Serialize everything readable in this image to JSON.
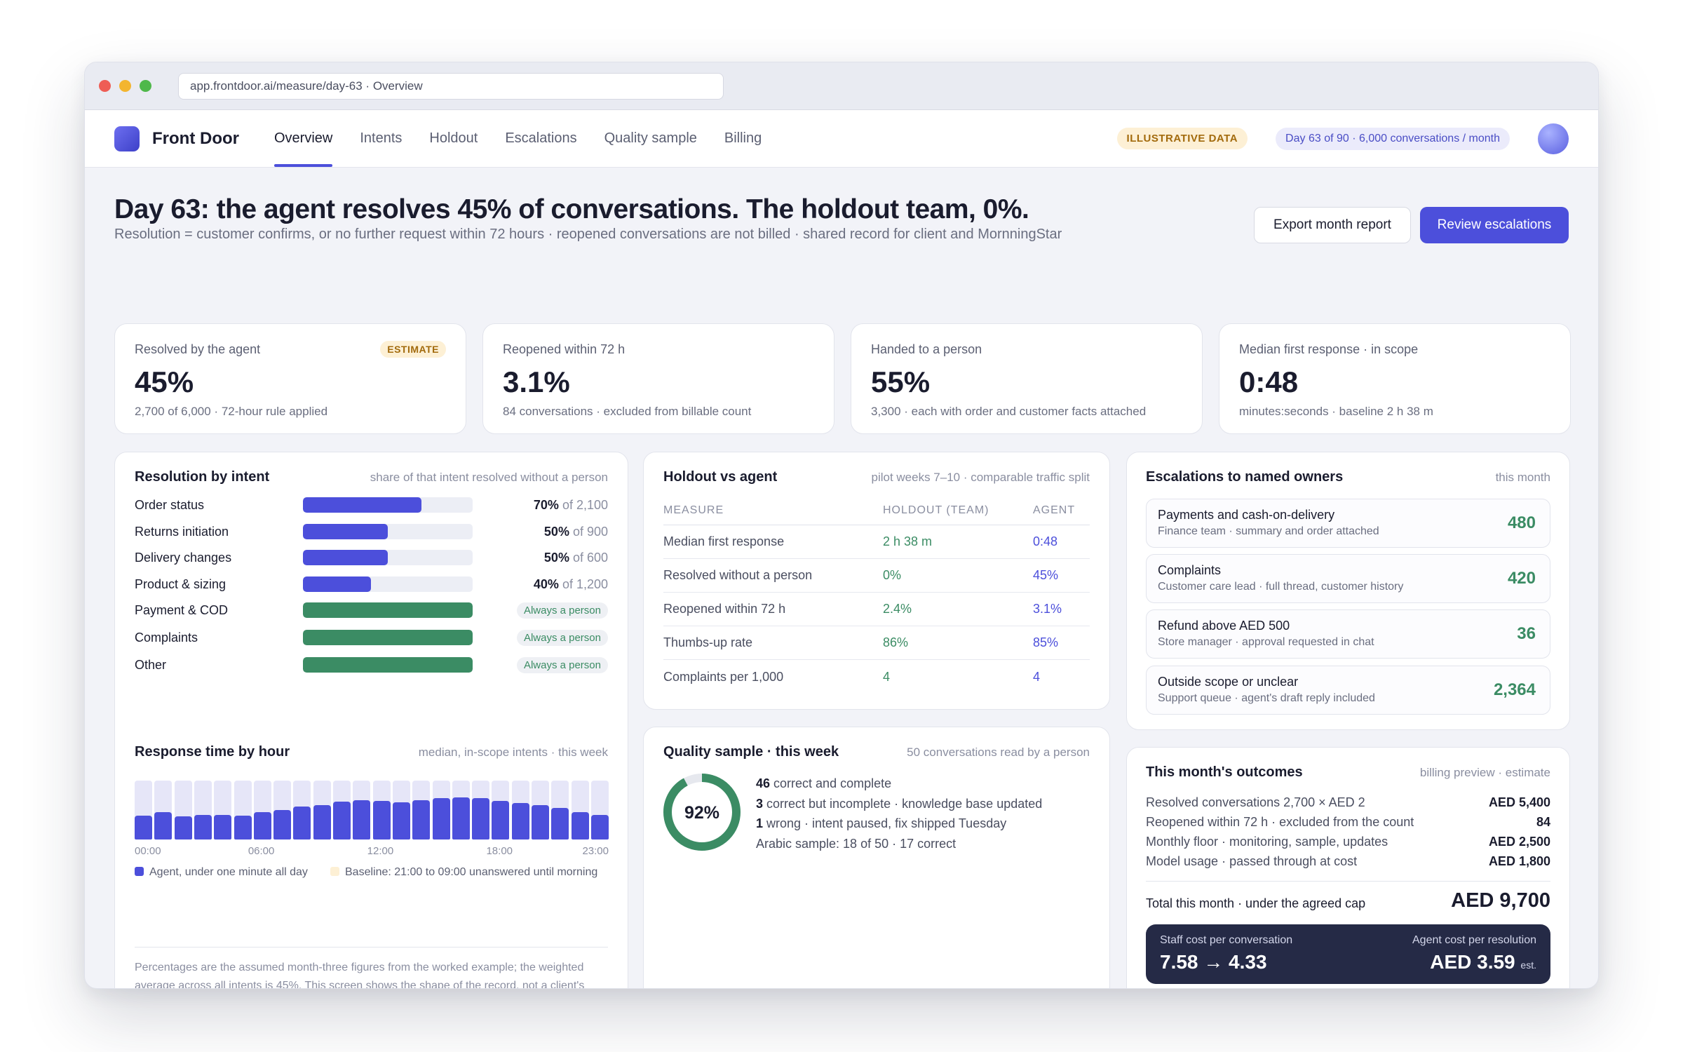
{
  "browser": {
    "url": "app.frontdoor.ai/measure/day-63 · Overview"
  },
  "nav": {
    "brand": "Front Door",
    "tabs": [
      "Overview",
      "Intents",
      "Holdout",
      "Escalations",
      "Quality sample",
      "Billing"
    ],
    "active_tab": "Overview",
    "illustrative_badge": "ILLUSTRATIVE DATA",
    "day_pill": "Day 63 of 90 · 6,000 conversations / month"
  },
  "header": {
    "title": "Day 63: the agent resolves 45% of conversations. The holdout team, 0%.",
    "subtitle": "Resolution = customer confirms, or no further request within 72 hours · reopened conversations are not billed · shared record for client and MornningStar",
    "export_button": "Export month report",
    "review_button": "Review escalations"
  },
  "kpis": [
    {
      "label": "Resolved by the agent",
      "badge": "ESTIMATE",
      "value": "45%",
      "note": "2,700 of 6,000 · 72-hour rule applied"
    },
    {
      "label": "Reopened within 72 h",
      "value": "3.1%",
      "note": "84 conversations · excluded from billable count"
    },
    {
      "label": "Handed to a person",
      "value": "55%",
      "note": "3,300 · each with order and customer facts attached"
    },
    {
      "label": "Median first response · in scope",
      "value": "0:48",
      "note": "minutes:seconds · baseline 2 h 38 m"
    }
  ],
  "resolution": {
    "title": "Resolution by intent",
    "subtitle": "share of that intent resolved without a person",
    "rows": [
      {
        "name": "Order status",
        "pct": 0.7,
        "pct_label": "70%",
        "of": " of 2,100",
        "always": ""
      },
      {
        "name": "Returns initiation",
        "pct": 0.5,
        "pct_label": "50%",
        "of": " of 900",
        "always": ""
      },
      {
        "name": "Delivery changes",
        "pct": 0.5,
        "pct_label": "50%",
        "of": " of 600",
        "always": ""
      },
      {
        "name": "Product & sizing",
        "pct": 0.4,
        "pct_label": "40%",
        "of": " of 1,200",
        "always": ""
      },
      {
        "name": "Payment & COD",
        "pct": 1.0,
        "pct_label": "",
        "of": "",
        "always": "Always a person"
      },
      {
        "name": "Complaints",
        "pct": 1.0,
        "pct_label": "",
        "of": "",
        "always": "Always a person"
      },
      {
        "name": "Other",
        "pct": 1.0,
        "pct_label": "",
        "of": "",
        "always": "Always a person"
      }
    ]
  },
  "response_time": {
    "title": "Response time by hour",
    "subtitle": "median, in-scope intents · this week",
    "hours": [
      0,
      1,
      2,
      3,
      4,
      5,
      6,
      7,
      8,
      9,
      10,
      11,
      12,
      13,
      14,
      15,
      16,
      17,
      18,
      19,
      20,
      21,
      22,
      23
    ],
    "agent_level": [
      0.4,
      0.47,
      0.39,
      0.42,
      0.42,
      0.4,
      0.46,
      0.5,
      0.56,
      0.58,
      0.64,
      0.67,
      0.66,
      0.63,
      0.67,
      0.7,
      0.72,
      0.7,
      0.66,
      0.62,
      0.58,
      0.54,
      0.47,
      0.42
    ],
    "tick_labels": [
      "00:00",
      "06:00",
      "12:00",
      "18:00",
      "23:00"
    ],
    "legend_agent": "Agent, under one minute all day",
    "legend_baseline": "Baseline: 21:00 to 09:00 unanswered until morning",
    "footnote": "Percentages are the assumed month-three figures from the worked example; the weighted average across all intents is 45%. This screen shows the shape of the record, not a client's numbers.",
    "colors": {
      "agent": "#4c4fdb",
      "baseline": "#e6e6f8",
      "legend_baseline": "#fdf0d5"
    }
  },
  "holdout": {
    "title": "Holdout vs agent",
    "subtitle": "pilot weeks 7–10 · comparable traffic split",
    "columns": [
      "MEASURE",
      "HOLDOUT (TEAM)",
      "AGENT"
    ],
    "rows": [
      [
        "Median first response",
        "2 h 38 m",
        "0:48"
      ],
      [
        "Resolved without a person",
        "0%",
        "45%"
      ],
      [
        "Reopened within 72 h",
        "2.4%",
        "3.1%"
      ],
      [
        "Thumbs-up rate",
        "86%",
        "85%"
      ],
      [
        "Complaints per 1,000",
        "4",
        "4"
      ]
    ]
  },
  "quality": {
    "title": "Quality sample · this week",
    "subtitle": "50 conversations read by a person",
    "donut_pct": 0.92,
    "donut_label": "92%",
    "lines": [
      {
        "num": "46",
        "text": " correct and complete"
      },
      {
        "num": "3",
        "text": " correct but incomplete · knowledge base updated"
      },
      {
        "num": "1",
        "text": " wrong · intent paused, fix shipped Tuesday"
      },
      {
        "num": "",
        "text": "Arabic sample: 18 of 50 · 17 correct"
      }
    ]
  },
  "escalations": {
    "title": "Escalations to named owners",
    "subtitle": "this month",
    "items": [
      {
        "title": "Payments and cash-on-delivery",
        "sub": "Finance team · summary and order attached",
        "count": "480"
      },
      {
        "title": "Complaints",
        "sub": "Customer care lead · full thread, customer history",
        "count": "420"
      },
      {
        "title": "Refund above AED 500",
        "sub": "Store manager · approval requested in chat",
        "count": "36"
      },
      {
        "title": "Outside scope or unclear",
        "sub": "Support queue · agent's draft reply included",
        "count": "2,364"
      }
    ]
  },
  "outcomes": {
    "title": "This month's outcomes",
    "subtitle": "billing preview · estimate",
    "rows": [
      {
        "label": "Resolved conversations 2,700 × AED 2",
        "value": "AED 5,400"
      },
      {
        "label": "Reopened within 72 h · excluded from the count",
        "value": "84"
      },
      {
        "label": "Monthly floor · monitoring, sample, updates",
        "value": "AED 2,500"
      },
      {
        "label": "Model usage · passed through at cost",
        "value": "AED 1,800"
      }
    ],
    "total_label": "Total this month · under the agreed cap",
    "total_value": "AED 9,700",
    "staff_label": "Staff cost per conversation",
    "staff_value": "7.58 → 4.33",
    "agent_label": "Agent cost per resolution",
    "agent_value": "AED 3.59",
    "agent_suffix": "est."
  }
}
